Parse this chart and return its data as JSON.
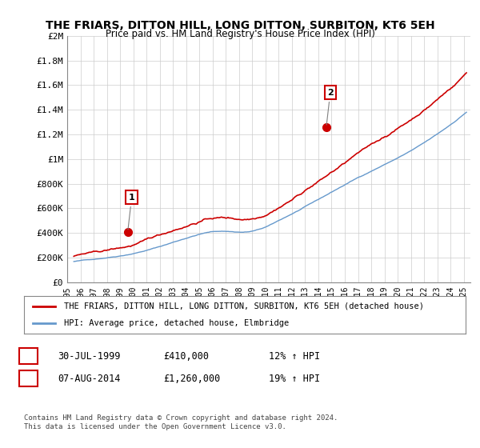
{
  "title": "THE FRIARS, DITTON HILL, LONG DITTON, SURBITON, KT6 5EH",
  "subtitle": "Price paid vs. HM Land Registry's House Price Index (HPI)",
  "ylabel_ticks": [
    "£0",
    "£200K",
    "£400K",
    "£600K",
    "£800K",
    "£1M",
    "£1.2M",
    "£1.4M",
    "£1.6M",
    "£1.8M",
    "£2M"
  ],
  "ytick_vals": [
    0,
    200000,
    400000,
    600000,
    800000,
    1000000,
    1200000,
    1400000,
    1600000,
    1800000,
    2000000
  ],
  "ylim": [
    0,
    2000000
  ],
  "xlim_start": 1995.5,
  "xlim_end": 2025.5,
  "property_color": "#cc0000",
  "hpi_color": "#6699cc",
  "marker1_year": 1999.58,
  "marker1_value": 410000,
  "marker2_year": 2014.6,
  "marker2_value": 1260000,
  "legend_property": "THE FRIARS, DITTON HILL, LONG DITTON, SURBITON, KT6 5EH (detached house)",
  "legend_hpi": "HPI: Average price, detached house, Elmbridge",
  "note1_date": "30-JUL-1999",
  "note1_price": "£410,000",
  "note1_hpi": "12% ↑ HPI",
  "note2_date": "07-AUG-2014",
  "note2_price": "£1,260,000",
  "note2_hpi": "19% ↑ HPI",
  "footer": "Contains HM Land Registry data © Crown copyright and database right 2024.\nThis data is licensed under the Open Government Licence v3.0.",
  "background_color": "#ffffff",
  "grid_color": "#cccccc"
}
